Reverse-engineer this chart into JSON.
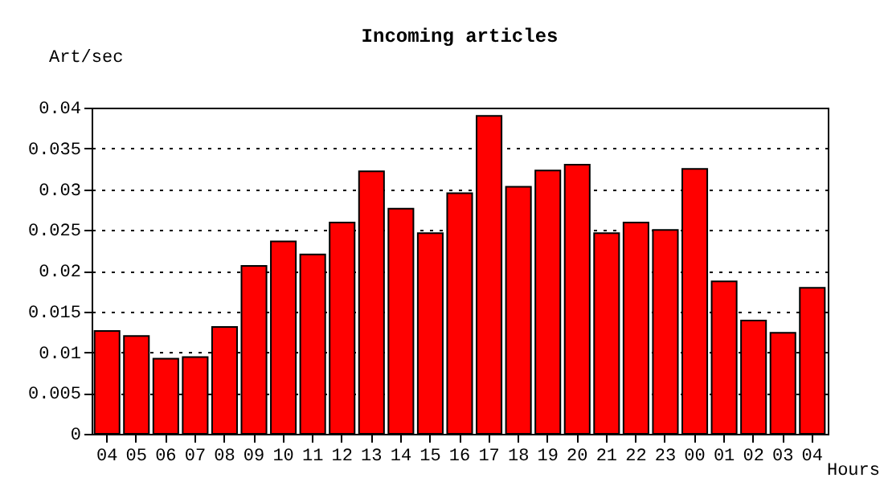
{
  "chart_data": {
    "type": "bar",
    "title": "Incoming articles",
    "xlabel": "Hours",
    "ylabel": "Art/sec",
    "categories": [
      "04",
      "05",
      "06",
      "07",
      "08",
      "09",
      "10",
      "11",
      "12",
      "13",
      "14",
      "15",
      "16",
      "17",
      "18",
      "19",
      "20",
      "21",
      "22",
      "23",
      "00",
      "01",
      "02",
      "03",
      "04"
    ],
    "values": [
      0.0126,
      0.012,
      0.0092,
      0.0094,
      0.0131,
      0.0206,
      0.0236,
      0.022,
      0.0259,
      0.0322,
      0.0276,
      0.0246,
      0.0295,
      0.039,
      0.0303,
      0.0323,
      0.033,
      0.0246,
      0.0259,
      0.025,
      0.0325,
      0.0187,
      0.0139,
      0.0124,
      0.0179
    ],
    "color": "#ff0000",
    "ylim": [
      0,
      0.04
    ],
    "yticks": [
      0,
      0.005,
      0.01,
      0.015,
      0.02,
      0.025,
      0.03,
      0.035,
      0.04
    ],
    "grid": "y"
  }
}
